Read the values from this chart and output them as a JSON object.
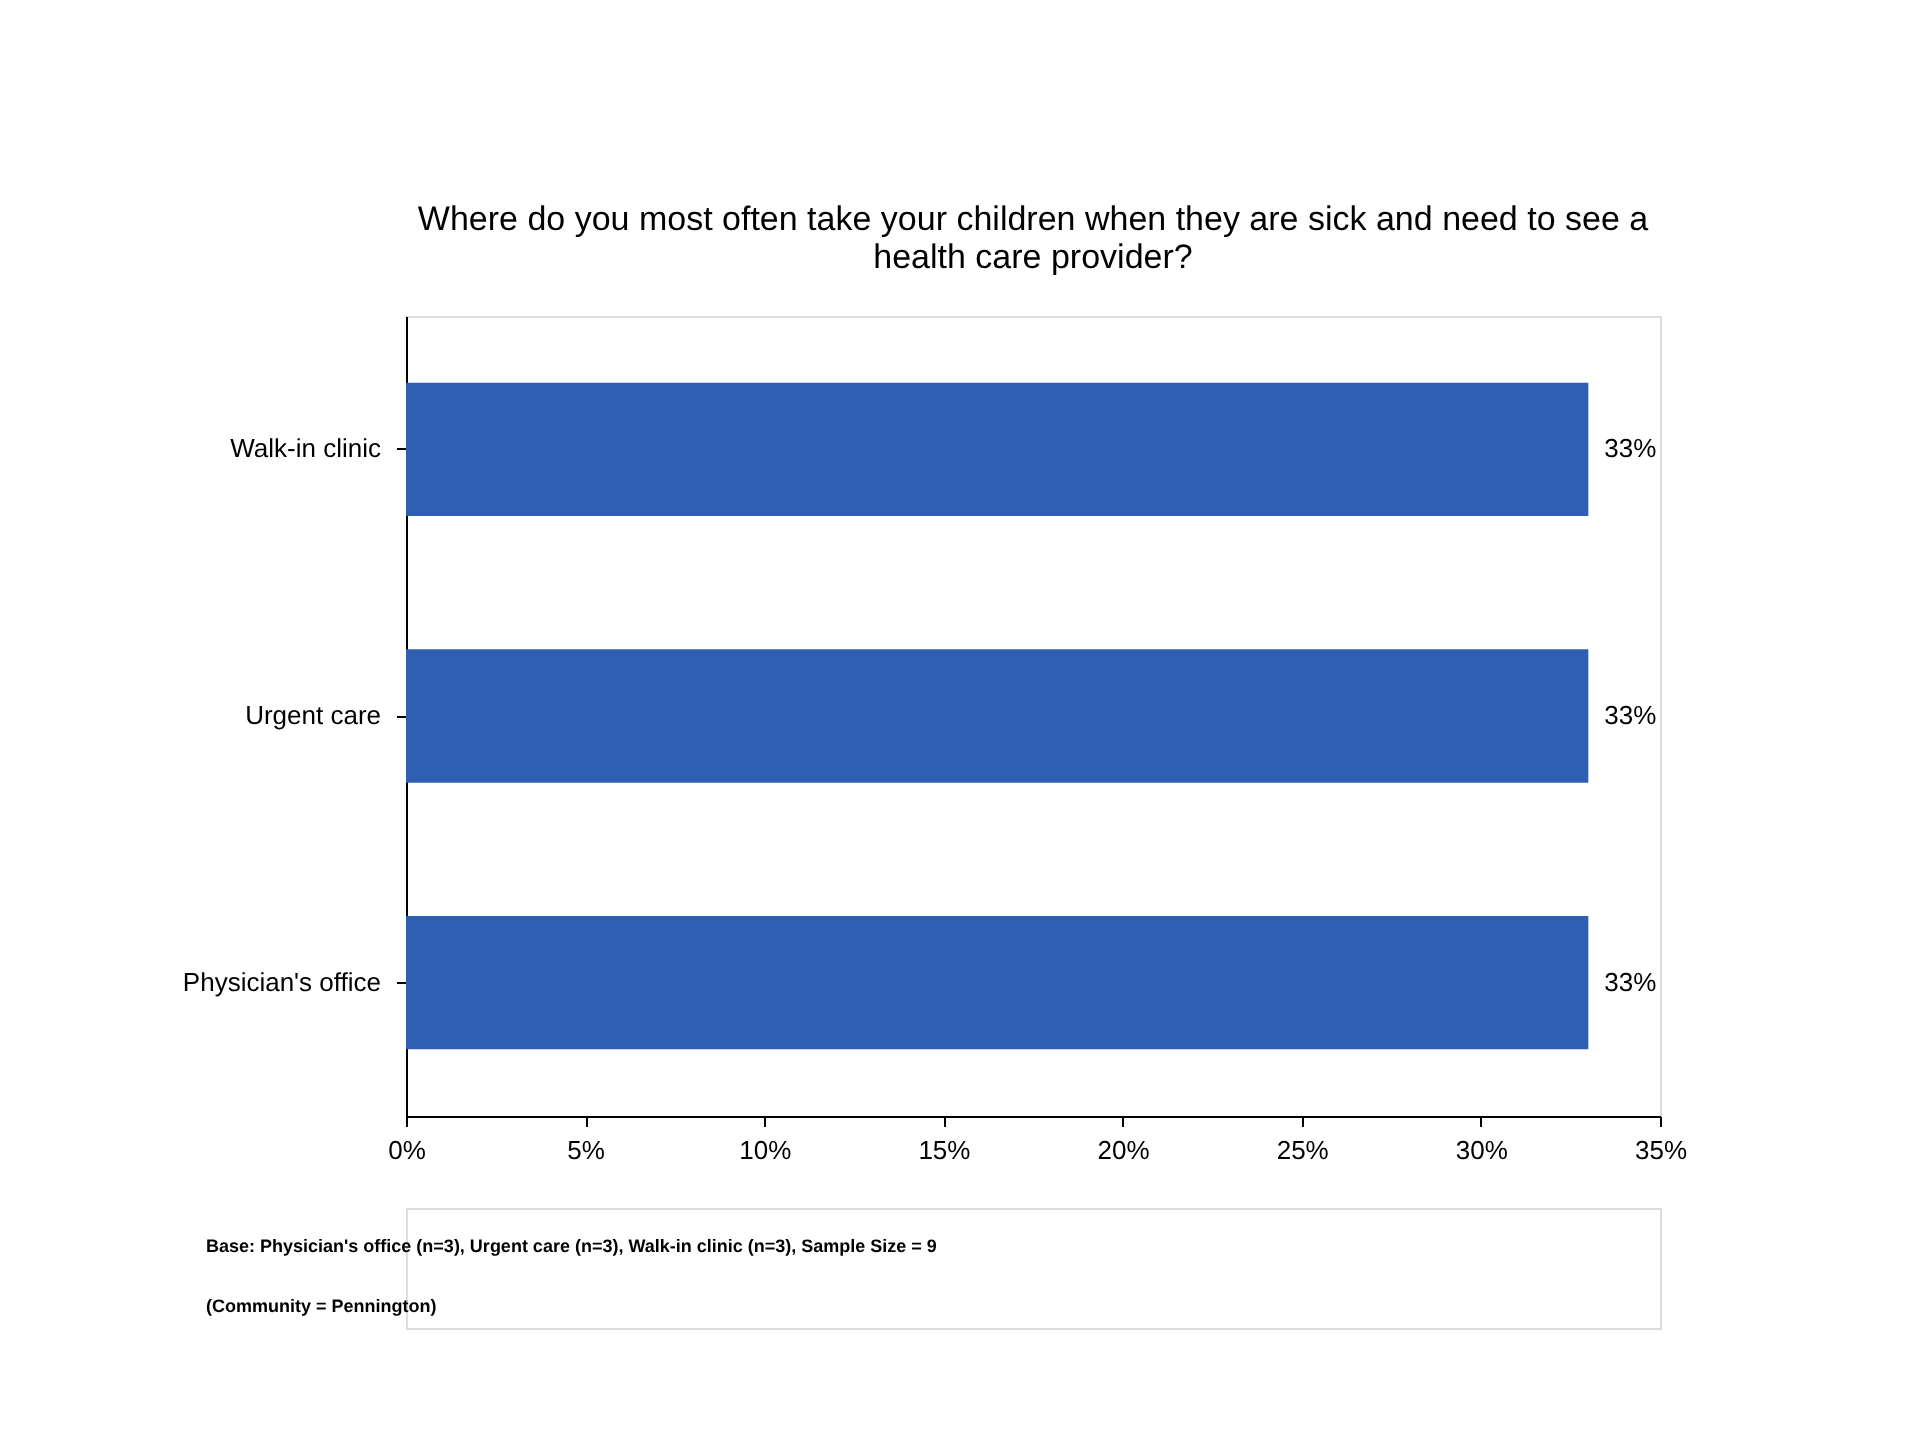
{
  "chart_data": {
    "type": "bar",
    "orientation": "horizontal",
    "title": "Where do you most often take your children when they are sick and need to see a health care provider?",
    "categories": [
      "Walk-in clinic",
      "Urgent care",
      "Physician's office"
    ],
    "values": [
      33,
      33,
      33
    ],
    "color": "#2f5fb3",
    "value_labels": [
      "33%",
      "33%",
      "33%"
    ],
    "xlim": [
      0,
      35
    ],
    "xticks": [
      {
        "value": 0,
        "label": "0%"
      },
      {
        "value": 5,
        "label": "5%"
      },
      {
        "value": 10,
        "label": "10%"
      },
      {
        "value": 15,
        "label": "15%"
      },
      {
        "value": 20,
        "label": "20%"
      },
      {
        "value": 25,
        "label": "25%"
      },
      {
        "value": 30,
        "label": "30%"
      },
      {
        "value": 35,
        "label": "35%"
      }
    ],
    "grid": false,
    "annotations": [
      "Base: Physician's office (n=3), Urgent care (n=3), Walk-in clinic (n=3), Sample Size = 9",
      "(Community = Pennington)"
    ]
  }
}
